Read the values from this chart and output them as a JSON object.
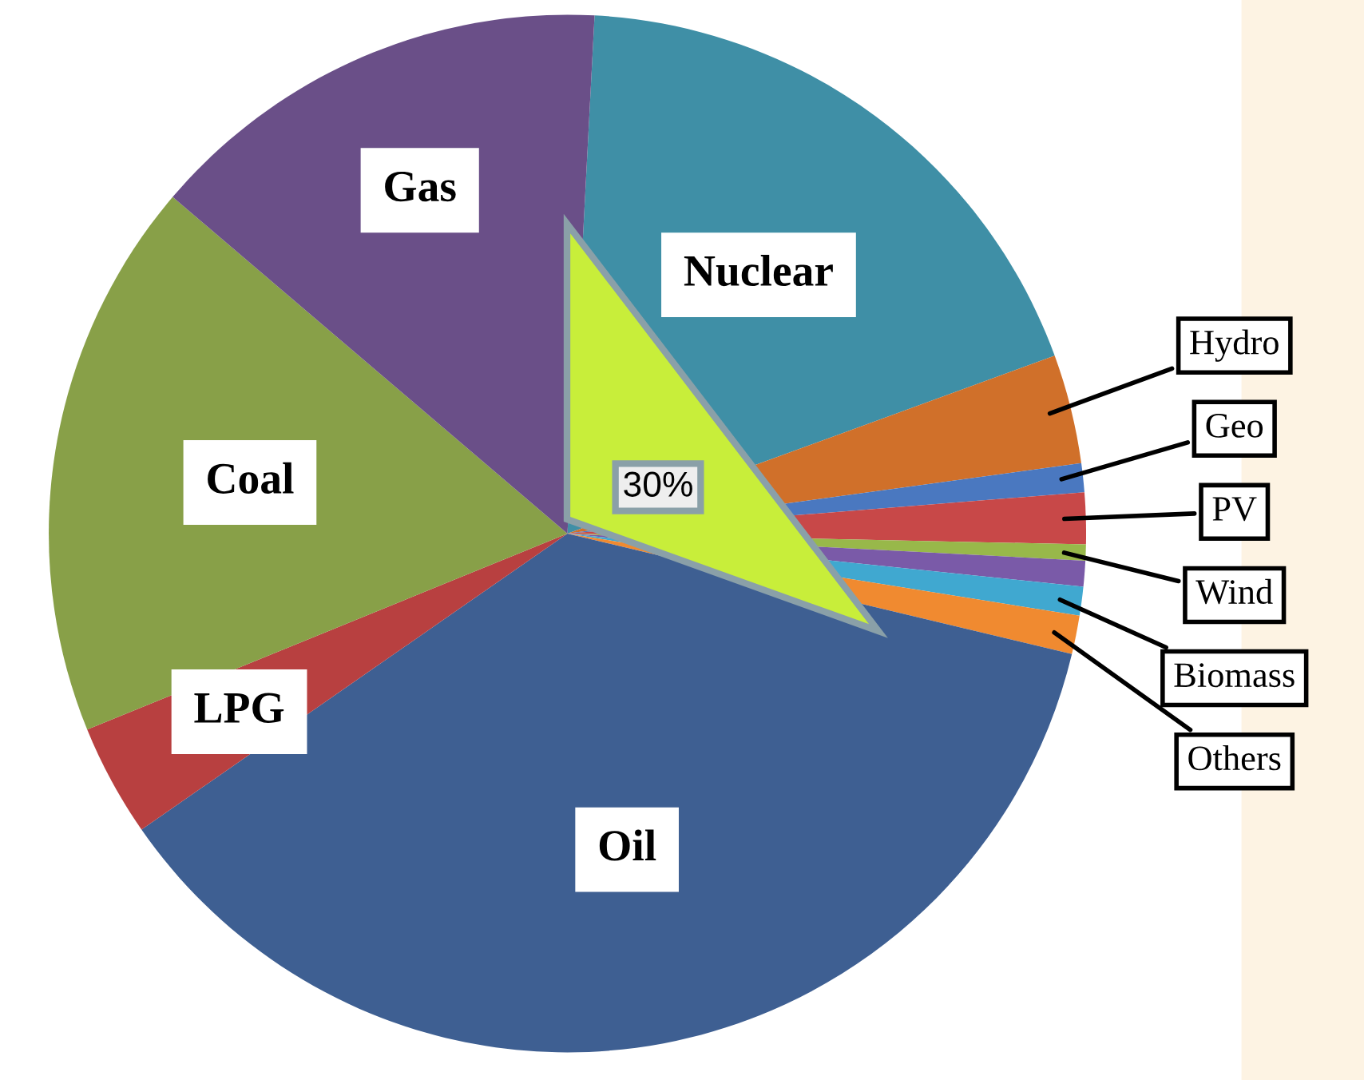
{
  "chart_data": {
    "type": "pie",
    "categories": [
      "Nuclear",
      "Hydro",
      "Geo",
      "PV",
      "Wind",
      null,
      "Biomass",
      "Others",
      "Oil",
      "LPG",
      "Coal",
      "Gas"
    ],
    "values": [
      18.6,
      3.4,
      0.9,
      1.6,
      0.5,
      0.8,
      0.9,
      1.2,
      36.6,
      3.5,
      17.4,
      14.6
    ],
    "colors": [
      "#3f8fa6",
      "#d0702a",
      "#4a78c0",
      "#c84848",
      "#98b84a",
      "#7a5aa8",
      "#40a8d0",
      "#f08a30",
      "#3e5f92",
      "#b84040",
      "#88a048",
      "#6a4f88"
    ],
    "annotations": [
      "30%"
    ]
  }
}
